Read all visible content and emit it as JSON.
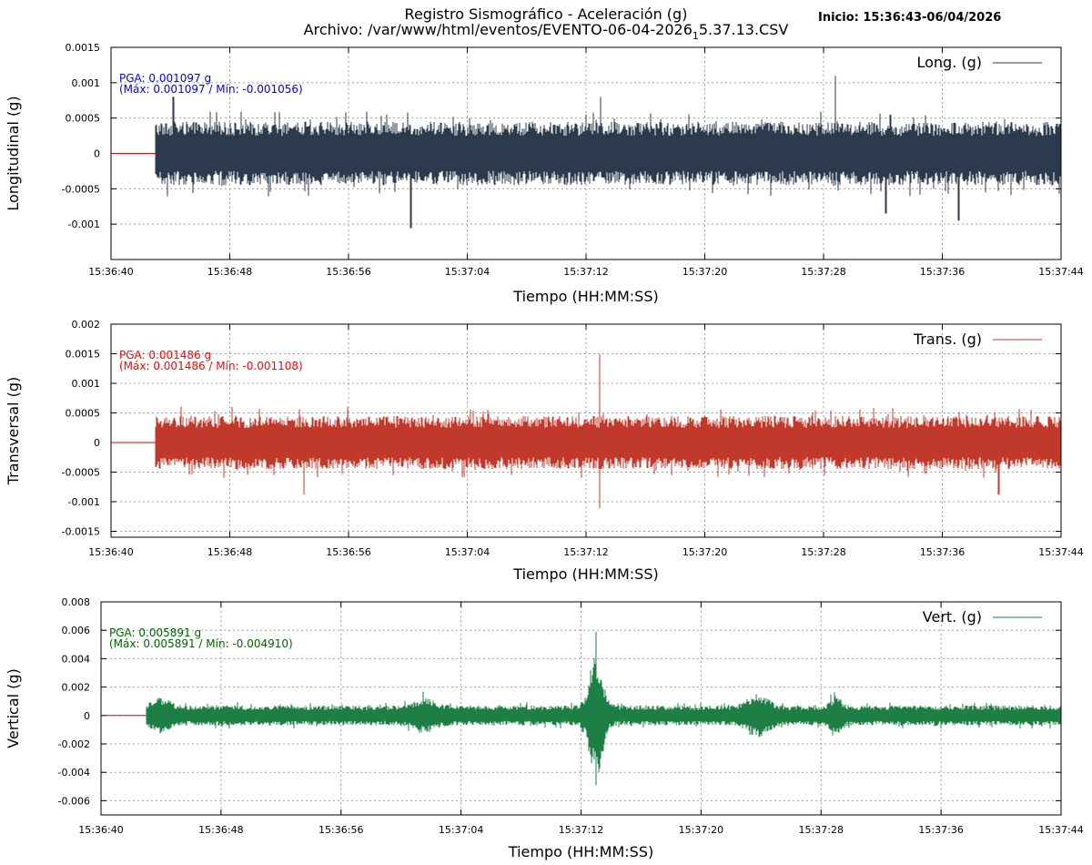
{
  "header": {
    "title_line1": "Registro Sismográfico - Aceleración (g)",
    "title_line2_pre": "Archivo: /var/www/html/eventos/EVENTO-06-04-2026",
    "title_line2_sub": "1",
    "title_line2_post": "5.37.13.CSV",
    "start_label": "Inicio: 15:36:43-06/04/2026"
  },
  "colors": {
    "baseline": "#e00000"
  },
  "chart_data": [
    {
      "type": "line",
      "series": [
        {
          "name": "Long. (g)",
          "color": "#2b3a4d"
        }
      ],
      "ylabel": "Longitudinal (g)",
      "xlabel": "Tiempo (HH:MM:SS)",
      "xlim_seconds": [
        0,
        64
      ],
      "xticks": [
        "15:36:40",
        "15:36:48",
        "15:36:56",
        "15:37:04",
        "15:37:12",
        "15:37:20",
        "15:37:28",
        "15:37:36",
        "15:37:44"
      ],
      "ylim": [
        -0.0015,
        0.0015
      ],
      "yticks": [
        0.0015,
        0.001,
        0.0005,
        0,
        -0.0005,
        -0.001
      ],
      "ytick_labels": [
        "0.0015",
        "0.001",
        "0.0005",
        "0",
        "-0.0005",
        "-0.001"
      ],
      "grid": true,
      "legend": "top-right",
      "record_start_seconds": 3,
      "pga": "PGA: 0.001097 g",
      "maxmin": "(Máx: 0.001097 / Mín: -0.001056)",
      "ann_color": "#0000ff",
      "noise_amplitude": 0.00045,
      "peaks": [
        {
          "t": 48.8,
          "value": 0.001097
        },
        {
          "t": 20.2,
          "value": -0.001056
        },
        {
          "t": 57.1,
          "value": -0.00095
        },
        {
          "t": 52.2,
          "value": -0.00085
        },
        {
          "t": 33.0,
          "value": 0.0008
        },
        {
          "t": 4.2,
          "value": 0.0008
        }
      ],
      "events": []
    },
    {
      "type": "line",
      "series": [
        {
          "name": "Trans. (g)",
          "color": "#c0392b"
        }
      ],
      "ylabel": "Transversal (g)",
      "xlabel": "Tiempo (HH:MM:SS)",
      "xlim_seconds": [
        0,
        64
      ],
      "xticks": [
        "15:36:40",
        "15:36:48",
        "15:36:56",
        "15:37:04",
        "15:37:12",
        "15:37:20",
        "15:37:28",
        "15:37:36",
        "15:37:44"
      ],
      "ylim": [
        -0.0016,
        0.002
      ],
      "yticks": [
        0.002,
        0.0015,
        0.001,
        0.0005,
        0,
        -0.0005,
        -0.001,
        -0.0015
      ],
      "ytick_labels": [
        "0.002",
        "0.0015",
        "0.001",
        "0.0005",
        "0",
        "-0.0005",
        "-0.001",
        "-0.0015"
      ],
      "grid": true,
      "legend": "top-right",
      "record_start_seconds": 3,
      "pga": "PGA: 0.001486 g",
      "maxmin": "(Máx: 0.001486 / Mín: -0.001108)",
      "ann_color": "#ff0000",
      "noise_amplitude": 0.00045,
      "peaks": [
        {
          "t": 32.9,
          "value": 0.001486
        },
        {
          "t": 32.9,
          "value": -0.001108
        },
        {
          "t": 13.0,
          "value": -0.00088
        },
        {
          "t": 59.8,
          "value": -0.00088
        }
      ],
      "events": []
    },
    {
      "type": "line",
      "series": [
        {
          "name": "Vert. (g)",
          "color": "#1e7f45"
        }
      ],
      "ylabel": "Vertical (g)",
      "xlabel": "Tiempo (HH:MM:SS)",
      "xlim_seconds": [
        0,
        64
      ],
      "xticks": [
        "15:36:40",
        "15:36:48",
        "15:36:56",
        "15:37:04",
        "15:37:12",
        "15:37:20",
        "15:37:28",
        "15:37:36",
        "15:37:44"
      ],
      "ylim": [
        -0.007,
        0.008
      ],
      "yticks": [
        0.008,
        0.006,
        0.004,
        0.002,
        0,
        -0.002,
        -0.004,
        -0.006
      ],
      "ytick_labels": [
        "0.008",
        "0.006",
        "0.004",
        "0.002",
        "0",
        "-0.002",
        "-0.004",
        "-0.006"
      ],
      "grid": true,
      "legend": "top-right",
      "record_start_seconds": 3,
      "pga": "PGA: 0.005891 g",
      "maxmin": "(Máx: 0.005891 / Mín: -0.004910)",
      "ann_color": "#006400",
      "noise_amplitude": 0.0007,
      "peaks": [
        {
          "t": 33.0,
          "value": 0.005891
        },
        {
          "t": 33.0,
          "value": -0.00491
        }
      ],
      "events": [
        {
          "t": 33.0,
          "amp": 0.0036,
          "width": 0.6
        },
        {
          "t": 43.8,
          "amp": 0.0009,
          "width": 0.9
        },
        {
          "t": 49.0,
          "amp": 0.0007,
          "width": 0.5
        },
        {
          "t": 21.6,
          "amp": 0.0006,
          "width": 1.0
        },
        {
          "t": 4.0,
          "amp": 0.0006,
          "width": 0.8
        }
      ]
    }
  ]
}
